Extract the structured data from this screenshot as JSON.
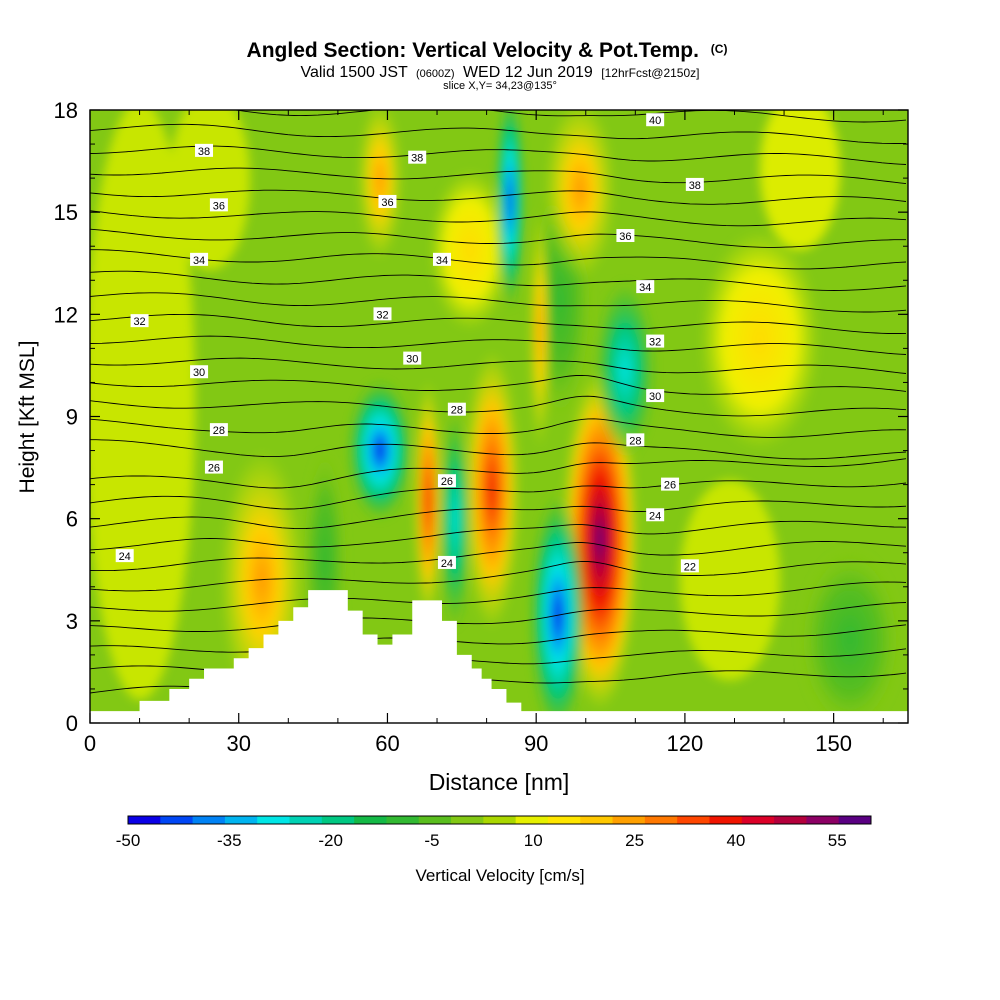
{
  "chart_data": {
    "type": "heatmap",
    "title": "Angled Section: Vertical Velocity & Pot.Temp.",
    "title_units": "(C)",
    "subtitle": {
      "valid_prefix": "Valid 1500 JST",
      "utc": "(0600Z)",
      "date": "WED 12 Jun 2019",
      "forecast": "[12hrFcst@2150z]"
    },
    "slice_label": "slice X,Y= 34,23@135°",
    "xlabel": "Distance [nm]",
    "ylabel": "Height [Kft MSL]",
    "xlim": [
      0,
      165
    ],
    "ylim": [
      0,
      18
    ],
    "x_ticks": [
      "0",
      "30",
      "60",
      "90",
      "120",
      "150"
    ],
    "y_ticks": [
      "0",
      "3",
      "6",
      "9",
      "12",
      "15",
      "18"
    ],
    "grid": false,
    "colorbar": {
      "label": "Vertical Velocity [cm/s]",
      "tick_labels": [
        "-50",
        "-35",
        "-20",
        "-5",
        "10",
        "25",
        "40",
        "55"
      ],
      "bins": [
        -50,
        -45,
        -40,
        -35,
        -30,
        -25,
        -20,
        -15,
        -10,
        -5,
        0,
        5,
        10,
        15,
        20,
        25,
        30,
        35,
        40,
        45,
        50,
        55,
        60
      ],
      "colors": [
        "#0a00e6",
        "#0046f5",
        "#0082f5",
        "#00b4f0",
        "#00e6e6",
        "#00d2b4",
        "#00c882",
        "#14b946",
        "#32b932",
        "#5abe1e",
        "#82c814",
        "#aad700",
        "#e6f000",
        "#ffe600",
        "#ffc800",
        "#ffa000",
        "#ff7800",
        "#ff4600",
        "#f01400",
        "#dc0028",
        "#b4003c",
        "#8c0064",
        "#5a0082"
      ]
    },
    "vertical_velocity_features": [
      {
        "kind": "updraft",
        "x": 34,
        "y": 4.8,
        "peak": 25
      },
      {
        "kind": "updraft",
        "x": 62,
        "y": 15.8,
        "peak": 18
      },
      {
        "kind": "updraft",
        "x": 69,
        "y": 6.3,
        "peak": 42
      },
      {
        "kind": "updraft",
        "x": 82,
        "y": 6.5,
        "peak": 40
      },
      {
        "kind": "updraft",
        "x": 102,
        "y": 5.8,
        "peak": 58
      },
      {
        "kind": "updraft",
        "x": 98,
        "y": 12.5,
        "peak": 18
      },
      {
        "kind": "updraft",
        "x": 130,
        "y": 10.5,
        "peak": 15
      },
      {
        "kind": "downdraft",
        "x": 57,
        "y": 8.5,
        "peak": -28
      },
      {
        "kind": "downdraft",
        "x": 75,
        "y": 6,
        "peak": -20
      },
      {
        "kind": "downdraft",
        "x": 88,
        "y": 16,
        "peak": -25
      },
      {
        "kind": "downdraft",
        "x": 94,
        "y": 3.3,
        "peak": -48
      },
      {
        "kind": "downdraft",
        "x": 107,
        "y": 10.5,
        "peak": -28
      }
    ],
    "potential_temperature_labels": [
      {
        "text": "38",
        "x": 23,
        "y": 16.8
      },
      {
        "text": "36",
        "x": 26,
        "y": 15.2
      },
      {
        "text": "34",
        "x": 22,
        "y": 13.6
      },
      {
        "text": "32",
        "x": 10,
        "y": 11.8
      },
      {
        "text": "30",
        "x": 22,
        "y": 10.3
      },
      {
        "text": "28",
        "x": 26,
        "y": 8.6
      },
      {
        "text": "26",
        "x": 25,
        "y": 7.5
      },
      {
        "text": "24",
        "x": 7,
        "y": 4.9
      },
      {
        "text": "38",
        "x": 66,
        "y": 16.6
      },
      {
        "text": "36",
        "x": 60,
        "y": 15.3
      },
      {
        "text": "34",
        "x": 71,
        "y": 13.6
      },
      {
        "text": "32",
        "x": 59,
        "y": 12.0
      },
      {
        "text": "30",
        "x": 65,
        "y": 10.7
      },
      {
        "text": "28",
        "x": 74,
        "y": 9.2
      },
      {
        "text": "26",
        "x": 72,
        "y": 7.1
      },
      {
        "text": "24",
        "x": 72,
        "y": 4.7
      },
      {
        "text": "40",
        "x": 114,
        "y": 17.7
      },
      {
        "text": "38",
        "x": 122,
        "y": 15.8
      },
      {
        "text": "36",
        "x": 108,
        "y": 14.3
      },
      {
        "text": "34",
        "x": 112,
        "y": 12.8
      },
      {
        "text": "32",
        "x": 114,
        "y": 11.2
      },
      {
        "text": "30",
        "x": 114,
        "y": 9.6
      },
      {
        "text": "28",
        "x": 110,
        "y": 8.3
      },
      {
        "text": "26",
        "x": 117,
        "y": 7.0
      },
      {
        "text": "24",
        "x": 114,
        "y": 6.1
      },
      {
        "text": "22",
        "x": 121,
        "y": 4.6
      }
    ],
    "terrain_profile": [
      {
        "x": 0,
        "y": 0.35
      },
      {
        "x": 10,
        "y": 0.65
      },
      {
        "x": 16,
        "y": 1.0
      },
      {
        "x": 20,
        "y": 1.3
      },
      {
        "x": 23,
        "y": 1.6
      },
      {
        "x": 29,
        "y": 1.9
      },
      {
        "x": 32,
        "y": 2.2
      },
      {
        "x": 35,
        "y": 2.6
      },
      {
        "x": 38,
        "y": 3.0
      },
      {
        "x": 41,
        "y": 3.4
      },
      {
        "x": 44,
        "y": 3.9
      },
      {
        "x": 52,
        "y": 3.3
      },
      {
        "x": 55,
        "y": 2.6
      },
      {
        "x": 58,
        "y": 2.3
      },
      {
        "x": 61,
        "y": 2.6
      },
      {
        "x": 65,
        "y": 3.6
      },
      {
        "x": 71,
        "y": 3.0
      },
      {
        "x": 74,
        "y": 2.0
      },
      {
        "x": 77,
        "y": 1.6
      },
      {
        "x": 79,
        "y": 1.3
      },
      {
        "x": 81,
        "y": 1.0
      },
      {
        "x": 84,
        "y": 0.6
      },
      {
        "x": 87,
        "y": 0.35
      },
      {
        "x": 165,
        "y": 0.35
      }
    ]
  }
}
